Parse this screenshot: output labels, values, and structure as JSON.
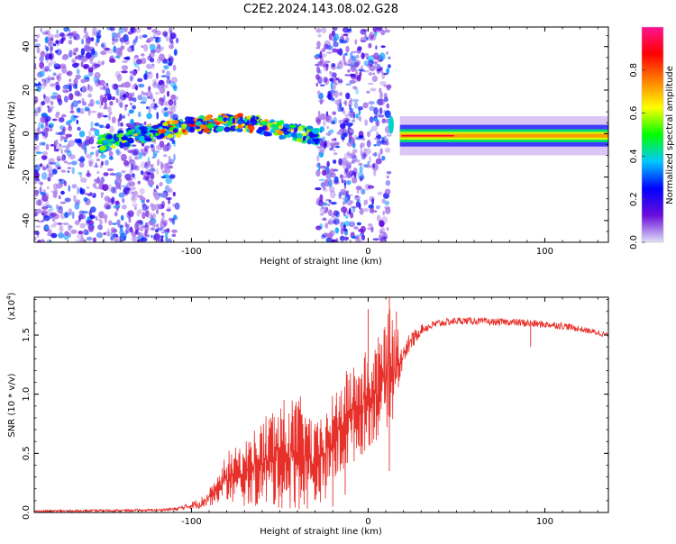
{
  "title": "C2E2.2024.143.08.02.G28",
  "chart_data": [
    {
      "type": "heatmap",
      "xlabel": "Height of straight line (km)",
      "ylabel": "Frequency (Hz)",
      "xlim": [
        -189,
        136
      ],
      "ylim": [
        -50,
        49
      ],
      "x_ticks": [
        "-100",
        "0",
        "100"
      ],
      "x_tick_values": [
        -100,
        0,
        100
      ],
      "y_ticks": [
        "-40",
        "-20",
        "0",
        "20",
        "40"
      ],
      "y_tick_values": [
        -40,
        -20,
        0,
        20,
        40
      ],
      "colorbar": {
        "label": "Normalized spectral amplitude",
        "range": [
          0,
          1
        ],
        "ticks": [
          "0.0",
          "0.2",
          "0.4",
          "0.6",
          "0.8"
        ],
        "tick_values": [
          0.0,
          0.2,
          0.4,
          0.6,
          0.8
        ],
        "colormap": [
          "#e0e0f8",
          "#6a0ddb",
          "#0000ff",
          "#00c8ff",
          "#00ff00",
          "#ffff00",
          "#ff8000",
          "#ff0000",
          "#ff1493"
        ]
      },
      "regions": [
        {
          "name": "scattered noise",
          "x_range": [
            -189,
            -108
          ],
          "freq_range": [
            -50,
            49
          ],
          "level": 0.1
        },
        {
          "name": "signal track",
          "x_range": [
            -152,
            -28
          ],
          "freq_at_start": -5,
          "freq_peak": 5,
          "level": 0.45
        },
        {
          "name": "noise band",
          "x_range": [
            -29,
            12
          ],
          "freq_range": [
            -50,
            49
          ],
          "level": 0.12
        },
        {
          "name": "steady tone",
          "x_range": [
            18,
            136
          ],
          "freq": -1,
          "level": 0.55
        }
      ]
    },
    {
      "type": "line",
      "xlabel": "Height of straight line (km)",
      "ylabel": "SNR (10 * v/v)",
      "y_multiplier": "(x10",
      "y_multiplier_exp": "4",
      "y_multiplier_close": ")",
      "xlim": [
        -189,
        136
      ],
      "ylim": [
        0,
        1.82
      ],
      "x_ticks": [
        "-100",
        "0",
        "100"
      ],
      "x_tick_values": [
        -100,
        0,
        100
      ],
      "y_ticks": [
        "0.0",
        "0.5",
        "1.0",
        "1.5"
      ],
      "y_tick_values": [
        0.0,
        0.5,
        1.0,
        1.5
      ],
      "color": "#e8302a",
      "series": [
        {
          "x": [
            -189,
            -150,
            -120,
            -108,
            -100,
            -95,
            -90,
            -85,
            -80,
            -75,
            -70,
            -65,
            -60,
            -55,
            -50,
            -45,
            -40,
            -35,
            -30,
            -25,
            -20,
            -15,
            -10,
            -5,
            0,
            5,
            10,
            15,
            18,
            20,
            25,
            30,
            40,
            50,
            60,
            70,
            80,
            90,
            100,
            110,
            120,
            130,
            136
          ],
          "y": [
            0.01,
            0.015,
            0.02,
            0.03,
            0.06,
            0.08,
            0.12,
            0.2,
            0.27,
            0.3,
            0.33,
            0.35,
            0.37,
            0.4,
            0.42,
            0.45,
            0.43,
            0.42,
            0.35,
            0.45,
            0.55,
            0.7,
            0.8,
            0.85,
            0.9,
            0.95,
            1.05,
            1.15,
            1.25,
            1.32,
            1.45,
            1.55,
            1.6,
            1.62,
            1.62,
            1.61,
            1.61,
            1.6,
            1.59,
            1.58,
            1.55,
            1.52,
            1.5
          ],
          "y_low": [
            0.0,
            0.005,
            0.01,
            0.01,
            0.03,
            0.04,
            0.05,
            0.08,
            0.1,
            0.05,
            0.05,
            0.05,
            0.04,
            0.03,
            0.03,
            0.02,
            0.02,
            0.02,
            0.05,
            0.1,
            0.2,
            0.3,
            0.4,
            0.45,
            0.55,
            0.6,
            0.7,
            0.8,
            1.1,
            1.25,
            1.4,
            1.52,
            1.57,
            1.59,
            1.59,
            1.58,
            1.58,
            1.56,
            1.56,
            1.55,
            1.53,
            1.5,
            1.48
          ],
          "y_high": [
            0.02,
            0.025,
            0.03,
            0.04,
            0.09,
            0.13,
            0.2,
            0.3,
            0.52,
            0.55,
            0.6,
            0.7,
            0.8,
            0.9,
            0.95,
            0.97,
            1.0,
            0.95,
            0.75,
            0.85,
            1.0,
            1.15,
            1.25,
            1.3,
            1.4,
            1.45,
            1.7,
            1.75,
            1.5,
            1.45,
            1.55,
            1.6,
            1.64,
            1.65,
            1.65,
            1.64,
            1.64,
            1.63,
            1.62,
            1.61,
            1.58,
            1.55,
            1.53
          ],
          "dips": [
            [
              12,
              0.35
            ],
            [
              92,
              1.4
            ],
            [
              -13,
              0.15
            ],
            [
              -20,
              0.05
            ]
          ],
          "spikes": [
            [
              12,
              1.82
            ],
            [
              16,
              1.7
            ],
            [
              0,
              1.72
            ]
          ]
        }
      ]
    }
  ]
}
